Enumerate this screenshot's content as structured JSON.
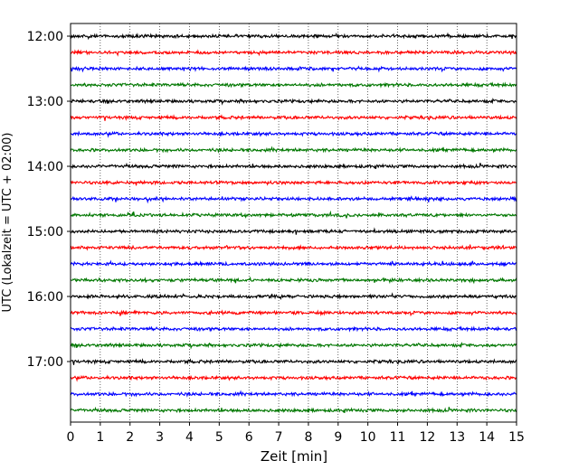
{
  "chart_data": {
    "type": "line",
    "title": "",
    "xlabel": "Zeit  [min]",
    "ylabel": "UTC (Lokalzeit = UTC + 02:00)",
    "xlim": [
      0,
      15
    ],
    "x_ticks": [
      "0",
      "1",
      "2",
      "3",
      "4",
      "5",
      "6",
      "7",
      "8",
      "9",
      "10",
      "11",
      "12",
      "13",
      "14",
      "15"
    ],
    "y_tick_labels": [
      "12:00",
      "13:00",
      "14:00",
      "15:00",
      "16:00",
      "17:00"
    ],
    "grid": "vertical dotted lines at each minute",
    "trace_interval_minutes": 15,
    "trace_start_times": [
      "12:00",
      "12:15",
      "12:30",
      "12:45",
      "13:00",
      "13:15",
      "13:30",
      "13:45",
      "14:00",
      "14:15",
      "14:30",
      "14:45",
      "15:00",
      "15:15",
      "15:30",
      "15:45",
      "16:00",
      "16:15",
      "16:30",
      "16:45",
      "17:00",
      "17:15",
      "17:30",
      "17:45"
    ],
    "trace_colors": [
      "#000000",
      "#ff0000",
      "#0000ff",
      "#007700"
    ],
    "series": "seismogram traces — one trace per 15-minute window, colours cycling black, red, blue, green"
  }
}
